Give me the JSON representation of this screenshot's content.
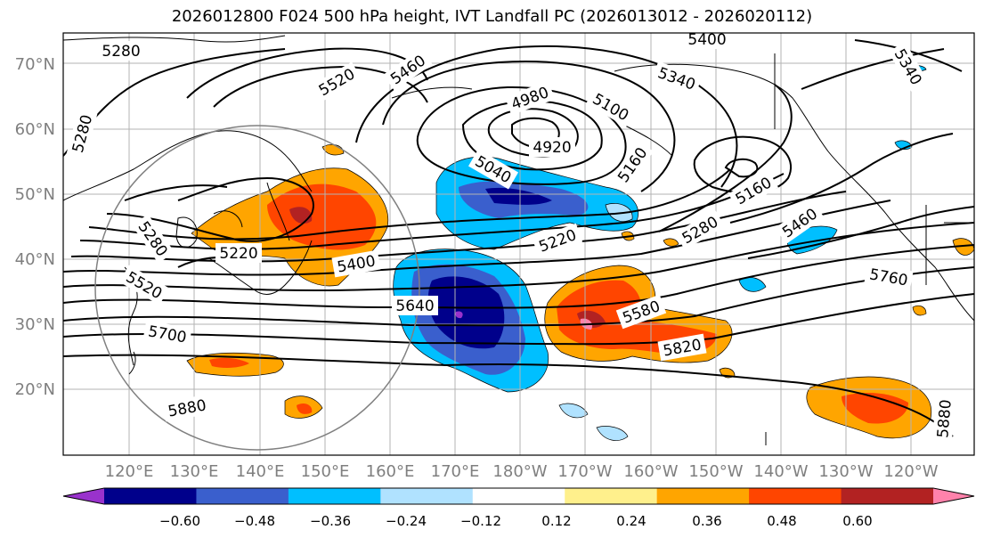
{
  "title": "2026012800 F024 500 hPa height, IVT Landfall PC (2026013012 - 2026020112)",
  "map": {
    "lat_labels": [
      "70°N",
      "60°N",
      "50°N",
      "40°N",
      "30°N",
      "20°N"
    ],
    "lon_labels": [
      "120°E",
      "130°E",
      "140°E",
      "150°E",
      "160°E",
      "170°E",
      "180°W",
      "170°W",
      "160°W",
      "150°W",
      "140°W",
      "130°W",
      "120°W"
    ],
    "contour_labels": [
      "5280",
      "5280",
      "5520",
      "5460",
      "5400",
      "5340",
      "5340",
      "4980",
      "5100",
      "4920",
      "5040",
      "5160",
      "5160",
      "5220",
      "5220",
      "5280",
      "5280",
      "5460",
      "5400",
      "5520",
      "5640",
      "5580",
      "5700",
      "5760",
      "5820",
      "5880",
      "5880"
    ]
  },
  "colorbar": {
    "ticks": [
      "−0.60",
      "−0.48",
      "−0.36",
      "−0.24",
      "−0.12",
      "0.12",
      "0.24",
      "0.36",
      "0.48",
      "0.60"
    ],
    "colors": [
      "#9932cc",
      "#00008b",
      "#3a5fcd",
      "#00bfff",
      "#b0e2ff",
      "#ffffff",
      "#fff08c",
      "#ffa500",
      "#ff4500",
      "#b22222",
      "#ff82ab"
    ]
  }
}
